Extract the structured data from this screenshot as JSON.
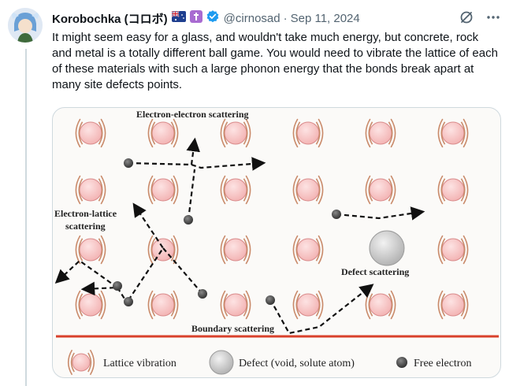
{
  "tweet": {
    "author": {
      "display_name": "Korobochka (コロボ)",
      "handle": "@cirnosad",
      "avatar_icon": "anime-avatar-icon",
      "badges": [
        "australia-flag-icon",
        "cross-badge-icon",
        "verified-icon"
      ]
    },
    "separator": "·",
    "date": "Sep 11, 2024",
    "text": "It might seem easy for a glass, and wouldn't take much energy, but concrete, rock and metal is a totally different ball game. You would need to vibrate the lattice of each of these materials with such a large phonon energy that the bonds break apart at many site defects points.",
    "actions": [
      "grok-icon",
      "more-icon"
    ]
  },
  "figure": {
    "labels": {
      "electron_electron": "Electron-electron scattering",
      "electron_lattice_1": "Electron-lattice",
      "electron_lattice_2": "scattering",
      "defect": "Defect scattering",
      "boundary": "Boundary scattering"
    },
    "legend": {
      "lattice": "Lattice vibration",
      "defect": "Defect (void, solute atom)",
      "electron": "Free electron"
    },
    "colors": {
      "atom_fill": "#f6c3c3",
      "atom_stroke": "#d98b8b",
      "wave": "#c98a6a",
      "boundary": "#d9412b",
      "electron": "#555555"
    }
  }
}
